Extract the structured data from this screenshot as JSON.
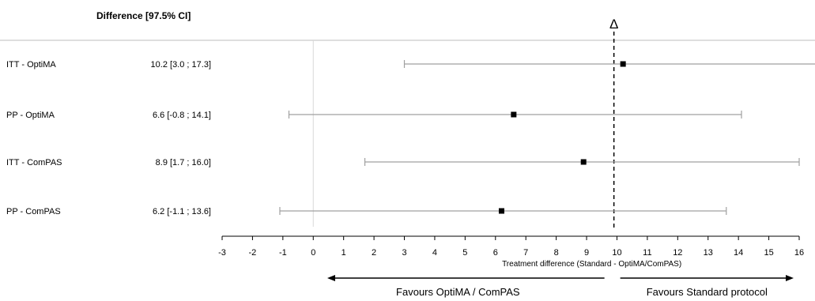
{
  "chart_data": {
    "type": "forest",
    "column_header": "Difference [97.5% CI]",
    "margin_symbol": "Δ",
    "margin_value": 9.9,
    "xlabel": "Treatment difference (Standard  - OptiMA/ComPAS)",
    "xlim": [
      -3,
      16
    ],
    "xticks": [
      -3,
      -2,
      -1,
      0,
      1,
      2,
      3,
      4,
      5,
      6,
      7,
      8,
      9,
      10,
      11,
      12,
      13,
      14,
      15,
      16
    ],
    "rows": [
      {
        "label": "ITT - OptiMA",
        "ci_text": "10.2 [3.0 ; 17.3]",
        "estimate": 10.2,
        "lower": 3.0,
        "upper": 17.3
      },
      {
        "label": "PP - OptiMA",
        "ci_text": "6.6 [-0.8 ; 14.1]",
        "estimate": 6.6,
        "lower": -0.8,
        "upper": 14.1
      },
      {
        "label": "ITT - ComPAS",
        "ci_text": "8.9 [1.7 ; 16.0]",
        "estimate": 8.9,
        "lower": 1.7,
        "upper": 16.0
      },
      {
        "label": "PP - ComPAS",
        "ci_text": "6.2 [-1.1 ; 13.6]",
        "estimate": 6.2,
        "lower": -1.1,
        "upper": 13.6
      }
    ],
    "favours_left": "Favours OptiMA / ComPAS",
    "favours_right": "Favours Standard protocol"
  }
}
